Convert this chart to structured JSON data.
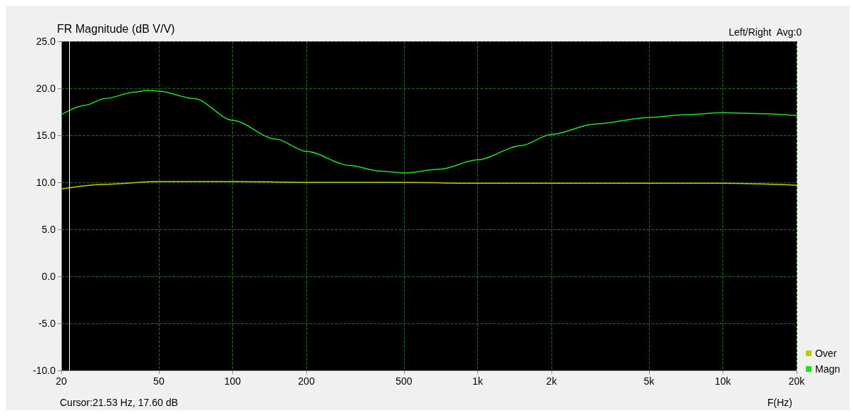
{
  "chart_data": {
    "type": "line",
    "title": "FR Magnitude (dB V/V)",
    "xlabel": "F(Hz)",
    "log": "x",
    "grid": true,
    "legend": "bottom right",
    "line_style": "solid",
    "marker": "none",
    "xlim": [
      20,
      20000
    ],
    "xticks": [
      20,
      50,
      100,
      200,
      500,
      {
        "value": 1000,
        "label": "1k"
      },
      {
        "value": 2000,
        "label": "2k"
      },
      {
        "value": 5000,
        "label": "5k"
      },
      {
        "value": 10000,
        "label": "10k"
      },
      {
        "value": 20000,
        "label": "20k"
      }
    ],
    "ylim": [
      -10,
      25
    ],
    "yticks": [
      {
        "value": -10,
        "label": "-10.0"
      },
      {
        "value": -5,
        "label": "-5.0"
      },
      {
        "value": 0,
        "label": "0.0"
      },
      {
        "value": 5,
        "label": "5.0"
      },
      {
        "value": 10,
        "label": "10.0"
      },
      {
        "value": 15,
        "label": "15.0"
      },
      {
        "value": 20,
        "label": "20.0"
      },
      {
        "value": 25,
        "label": "25.0"
      }
    ],
    "series": [
      {
        "name": "Over",
        "color": "#c8c800",
        "x": [
          20,
          30,
          50,
          100,
          200,
          500,
          1000,
          2000,
          5000,
          10000,
          20000
        ],
        "values": [
          9.3,
          9.8,
          10.1,
          10.1,
          10.0,
          10.0,
          9.9,
          9.9,
          9.9,
          9.9,
          9.7
        ]
      },
      {
        "name": "Magn",
        "color": "#22dd22",
        "x": [
          20,
          25,
          30,
          40,
          45,
          50,
          70,
          100,
          150,
          200,
          300,
          400,
          500,
          700,
          1000,
          1500,
          2000,
          3000,
          5000,
          7000,
          10000,
          15000,
          20000
        ],
        "values": [
          17.2,
          18.2,
          18.9,
          19.6,
          19.8,
          19.7,
          18.9,
          16.6,
          14.6,
          13.3,
          11.8,
          11.2,
          11.0,
          11.4,
          12.4,
          13.9,
          15.1,
          16.2,
          16.9,
          17.2,
          17.4,
          17.3,
          17.1
        ]
      }
    ],
    "ref_lines": [
      {
        "axis": "x",
        "value": 21.53,
        "color": "#ffffff"
      }
    ],
    "annotations": [
      "Left/Right  Avg:0",
      "Cursor:21.53 Hz, 17.60 dB"
    ]
  }
}
